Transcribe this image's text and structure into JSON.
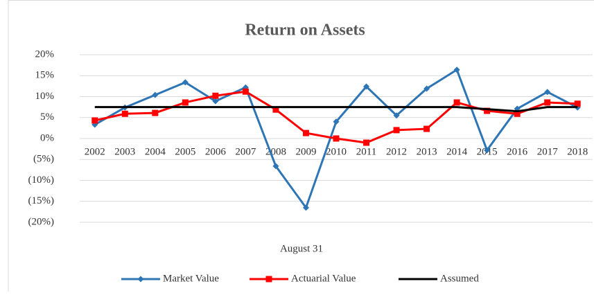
{
  "chart_data": {
    "type": "line",
    "title": "Return on Assets",
    "x_label": "August 31",
    "categories": [
      "2002",
      "2003",
      "2004",
      "2005",
      "2006",
      "2007",
      "2008",
      "2009",
      "2010",
      "2011",
      "2012",
      "2013",
      "2014",
      "2015",
      "2016",
      "2017",
      "2018"
    ],
    "series": [
      {
        "name": "Market Value",
        "color": "#2e75b6",
        "marker": "diamond",
        "values": [
          3.3,
          7.4,
          10.4,
          13.4,
          8.9,
          12.2,
          -6.6,
          -16.5,
          4.0,
          12.4,
          5.5,
          11.9,
          16.4,
          -2.8,
          7.1,
          11.1,
          7.4
        ]
      },
      {
        "name": "Actuarial Value",
        "color": "#ff0000",
        "marker": "square",
        "values": [
          4.3,
          5.9,
          6.1,
          8.6,
          10.2,
          11.2,
          6.9,
          1.3,
          0,
          -1.0,
          2.0,
          2.3,
          8.6,
          6.6,
          5.9,
          8.6,
          8.3
        ]
      },
      {
        "name": "Assumed",
        "color": "#000000",
        "marker": "none",
        "values": [
          7.5,
          7.5,
          7.5,
          7.5,
          7.5,
          7.5,
          7.5,
          7.5,
          7.5,
          7.5,
          7.5,
          7.5,
          7.5,
          7.0,
          6.5,
          7.5,
          7.5
        ]
      }
    ],
    "ylim": [
      -20,
      20
    ],
    "yticks": [
      {
        "value": 20,
        "label": "20%"
      },
      {
        "value": 15,
        "label": "15%"
      },
      {
        "value": 10,
        "label": "10%"
      },
      {
        "value": 5,
        "label": "5%"
      },
      {
        "value": 0,
        "label": "0%"
      },
      {
        "value": -5,
        "label": "(5%)"
      },
      {
        "value": -10,
        "label": "(10%)"
      },
      {
        "value": -15,
        "label": "(15%)"
      },
      {
        "value": -20,
        "label": "(20%)"
      }
    ],
    "grid": true,
    "legend": "bottom"
  }
}
